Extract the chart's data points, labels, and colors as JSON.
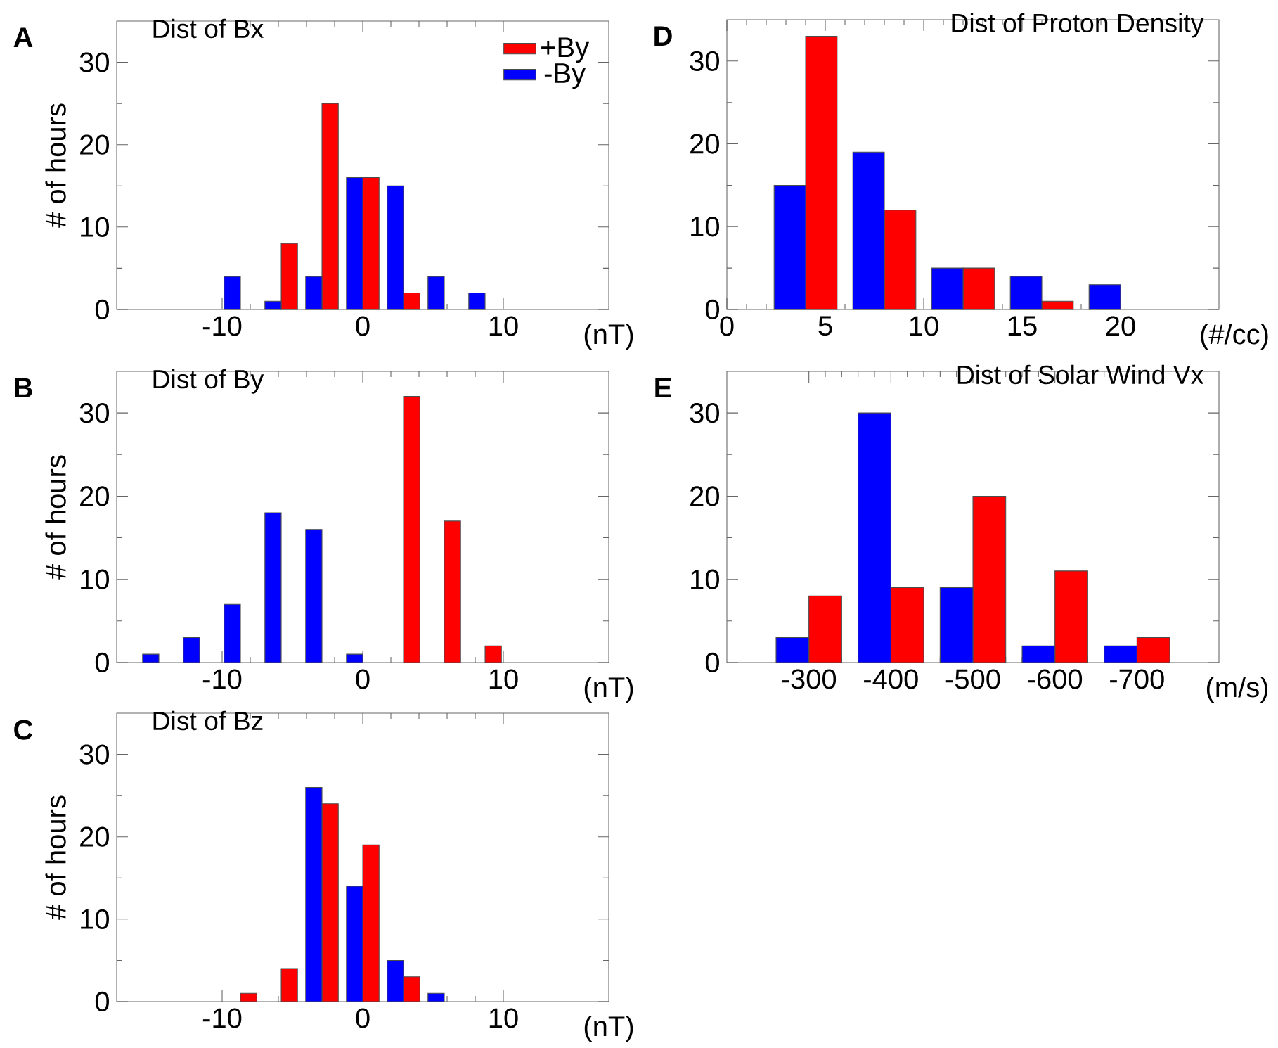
{
  "chart_data": [
    {
      "type": "bar",
      "title": "Dist of Bx",
      "xlabel": "(nT)",
      "ylabel": "# of hours",
      "annotations": [
        "A"
      ],
      "legend": "top right",
      "x": [
        -8.7,
        -5.8,
        -2.9,
        0,
        2.9,
        5.8,
        8.7
      ],
      "series": [
        {
          "name": "+By",
          "color": "#ff0000",
          "values": [
            null,
            8,
            25,
            16,
            2,
            null,
            null
          ]
        },
        {
          "name": "-By",
          "color": "#0000ff",
          "values": [
            4,
            1,
            4,
            16,
            15,
            4,
            2
          ]
        }
      ],
      "xlim": [
        -17.5,
        17.5
      ],
      "xticks": [
        -10,
        0,
        10
      ],
      "ylim": [
        0,
        35
      ],
      "yticks": [
        0,
        10,
        20,
        30
      ]
    },
    {
      "type": "bar",
      "title": "Dist of By",
      "xlabel": "(nT)",
      "ylabel": "# of hours",
      "annotations": [
        "B"
      ],
      "x": [
        -14.5,
        -11.6,
        -8.7,
        -5.8,
        -2.9,
        0,
        2.9,
        5.8,
        8.7
      ],
      "series": [
        {
          "color": "#ff0000",
          "values": [
            null,
            null,
            null,
            null,
            null,
            null,
            32,
            17,
            2
          ]
        },
        {
          "color": "#0000ff",
          "values": [
            1,
            3,
            7,
            18,
            16,
            1,
            null,
            null,
            null
          ]
        }
      ],
      "xlim": [
        -17.5,
        17.5
      ],
      "xticks": [
        -10,
        0,
        10
      ],
      "ylim": [
        0,
        35
      ],
      "yticks": [
        0,
        10,
        20,
        30
      ]
    },
    {
      "type": "bar",
      "title": "Dist of Bz",
      "xlabel": "(nT)",
      "ylabel": "# of hours",
      "annotations": [
        "C"
      ],
      "x": [
        -8.7,
        -5.8,
        -2.9,
        0,
        2.9,
        5.8
      ],
      "series": [
        {
          "color": "#ff0000",
          "values": [
            1,
            4,
            24,
            19,
            3,
            null
          ]
        },
        {
          "color": "#0000ff",
          "values": [
            null,
            null,
            26,
            14,
            5,
            1
          ]
        }
      ],
      "xlim": [
        -17.5,
        17.5
      ],
      "xticks": [
        -10,
        0,
        10
      ],
      "ylim": [
        0,
        35
      ],
      "yticks": [
        0,
        10,
        20,
        30
      ]
    },
    {
      "type": "bar",
      "title": "Dist of Proton Density",
      "xlabel": "(#/cc)",
      "annotations": [
        "D"
      ],
      "x": [
        4,
        8,
        12,
        16,
        20
      ],
      "series": [
        {
          "color": "#ff0000",
          "values": [
            33,
            12,
            5,
            1,
            null
          ]
        },
        {
          "color": "#0000ff",
          "values": [
            15,
            19,
            5,
            4,
            3
          ]
        }
      ],
      "xlim": [
        0,
        25
      ],
      "xticks": [
        0,
        5,
        10,
        15,
        20
      ],
      "ylim": [
        0,
        35
      ],
      "yticks": [
        0,
        10,
        20,
        30
      ]
    },
    {
      "type": "bar",
      "title": "Dist of Solar Wind Vx",
      "xlabel": "(m/s)",
      "annotations": [
        "E"
      ],
      "x": [
        -300,
        -400,
        -500,
        -600,
        -700
      ],
      "series": [
        {
          "color": "#ff0000",
          "values": [
            8,
            9,
            20,
            11,
            3
          ]
        },
        {
          "color": "#0000ff",
          "values": [
            3,
            30,
            9,
            2,
            2
          ]
        }
      ],
      "xlim": [
        -200,
        -800
      ],
      "xticks": [
        -300,
        -400,
        -500,
        -600,
        -700
      ],
      "ylim": [
        0,
        35
      ],
      "yticks": [
        0,
        10,
        20,
        30
      ]
    }
  ]
}
